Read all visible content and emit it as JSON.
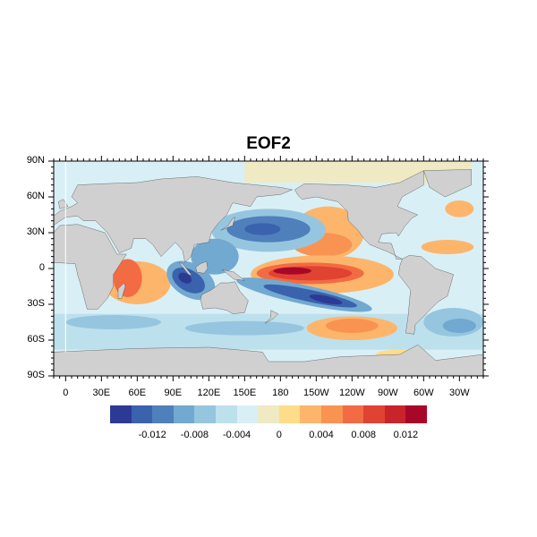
{
  "title": "EOF2",
  "map": {
    "projection": "cylindrical equidistant",
    "lon_range": [
      -10,
      350
    ],
    "lat_range": [
      -90,
      90
    ],
    "land_color": "#d0d0d0",
    "lat_labels": [
      {
        "lat": 90,
        "text": "90N"
      },
      {
        "lat": 60,
        "text": "60N"
      },
      {
        "lat": 30,
        "text": "30N"
      },
      {
        "lat": 0,
        "text": "0"
      },
      {
        "lat": -30,
        "text": "30S"
      },
      {
        "lat": -60,
        "text": "60S"
      },
      {
        "lat": -90,
        "text": "90S"
      }
    ],
    "lon_labels": [
      {
        "lon": 0,
        "text": "0"
      },
      {
        "lon": 30,
        "text": "30E"
      },
      {
        "lon": 60,
        "text": "60E"
      },
      {
        "lon": 90,
        "text": "90E"
      },
      {
        "lon": 120,
        "text": "120E"
      },
      {
        "lon": 150,
        "text": "150E"
      },
      {
        "lon": 180,
        "text": "180"
      },
      {
        "lon": 210,
        "text": "150W"
      },
      {
        "lon": 240,
        "text": "120W"
      },
      {
        "lon": 270,
        "text": "90W"
      },
      {
        "lon": 300,
        "text": "60W"
      },
      {
        "lon": 330,
        "text": "30W"
      }
    ]
  },
  "colorbar": {
    "colors": [
      "#2c3a95",
      "#3a62ad",
      "#4f80bb",
      "#72a9d0",
      "#96c6df",
      "#bde0ed",
      "#d9eff6",
      "#efe9c4",
      "#fddc8a",
      "#fdb56b",
      "#f99352",
      "#f26b43",
      "#e04332",
      "#c9242a",
      "#a90729"
    ],
    "levels": [
      -0.014,
      -0.012,
      -0.01,
      -0.008,
      -0.006,
      -0.004,
      -0.002,
      0,
      0.002,
      0.004,
      0.006,
      0.008,
      0.01,
      0.012
    ],
    "labels": [
      {
        "level_index": 1,
        "text": "-0.012"
      },
      {
        "level_index": 3,
        "text": "-0.008"
      },
      {
        "level_index": 5,
        "text": "-0.004"
      },
      {
        "level_index": 7,
        "text": "0"
      },
      {
        "level_index": 9,
        "text": "0.004"
      },
      {
        "level_index": 11,
        "text": "0.008"
      },
      {
        "level_index": 13,
        "text": "0.012"
      }
    ]
  }
}
